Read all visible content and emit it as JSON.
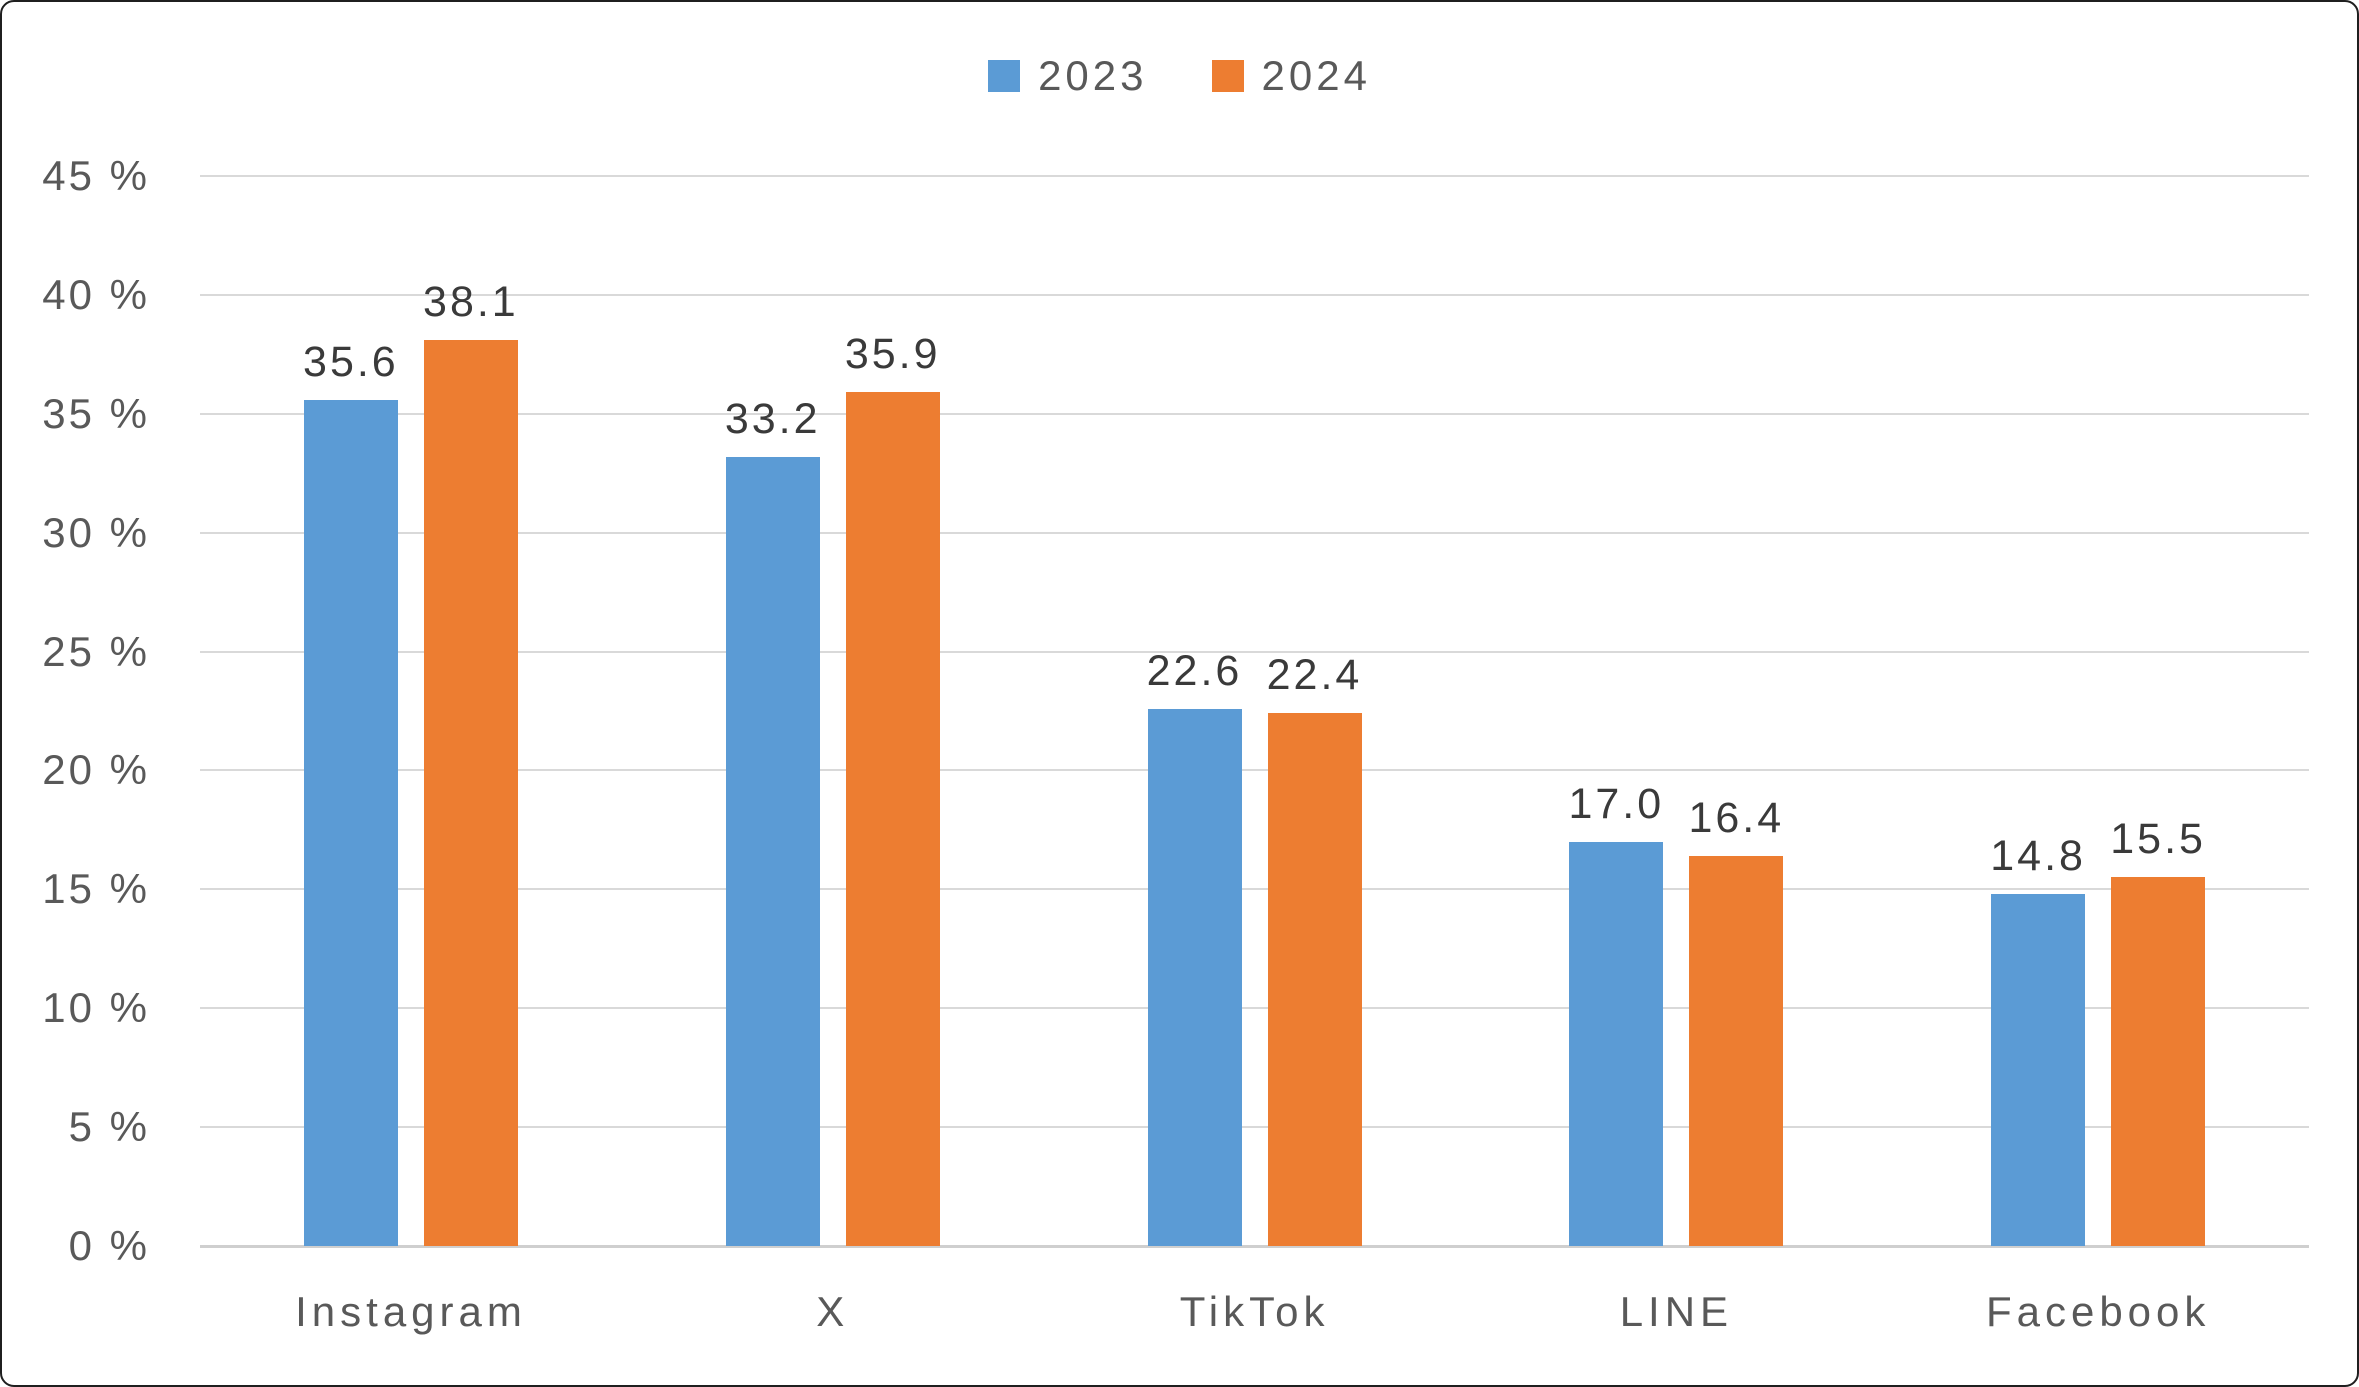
{
  "legend": {
    "items": [
      {
        "label": "2023",
        "color": "#5B9BD5"
      },
      {
        "label": "2024",
        "color": "#ED7D31"
      }
    ]
  },
  "chart_data": {
    "type": "bar",
    "title": "",
    "xlabel": "",
    "ylabel": "",
    "categories": [
      "Instagram",
      "X",
      "TikTok",
      "LINE",
      "Facebook"
    ],
    "series": [
      {
        "name": "2023",
        "color": "#5B9BD5",
        "values": [
          35.6,
          33.2,
          22.6,
          17.0,
          14.8
        ]
      },
      {
        "name": "2024",
        "color": "#ED7D31",
        "values": [
          38.1,
          35.9,
          22.4,
          16.4,
          15.5
        ]
      }
    ],
    "value_label_decimals": 1,
    "ylim": [
      0,
      45
    ],
    "ytick_step": 5,
    "yticks": [
      {
        "value": 0,
        "label": "0 %"
      },
      {
        "value": 5,
        "label": "5 %"
      },
      {
        "value": 10,
        "label": "10 %"
      },
      {
        "value": 15,
        "label": "15 %"
      },
      {
        "value": 20,
        "label": "20 %"
      },
      {
        "value": 25,
        "label": "25 %"
      },
      {
        "value": 30,
        "label": "30 %"
      },
      {
        "value": 35,
        "label": "35 %"
      },
      {
        "value": 40,
        "label": "40 %"
      },
      {
        "value": 45,
        "label": "45 %"
      }
    ],
    "grid": true,
    "legend_position": "top-center",
    "colors": {
      "gridline": "#d9d9d9",
      "axis_text": "#595959",
      "data_label_text": "#3a3a3a",
      "background": "#ffffff",
      "border": "#1f1f1f"
    }
  }
}
